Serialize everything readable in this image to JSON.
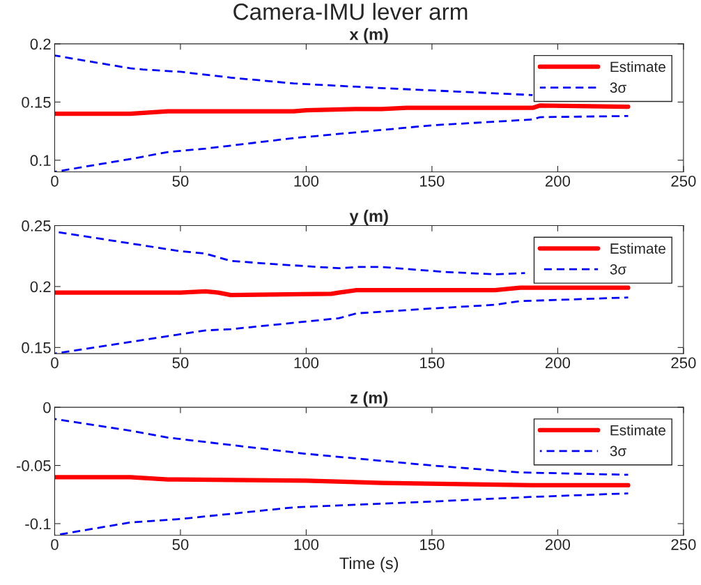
{
  "chart_data": [
    {
      "type": "line",
      "title": "Camera-IMU lever arm",
      "subtitle": "x (m)",
      "xlim": [
        0,
        250
      ],
      "xticks": [
        0,
        50,
        100,
        150,
        200,
        250
      ],
      "ylim": [
        0.09,
        0.2
      ],
      "yticks": [
        0.1,
        0.15,
        0.2
      ],
      "grid": false,
      "legend": "top right",
      "series": [
        {
          "name": "Estimate",
          "color": "#ff0000",
          "line_style": "solid",
          "x": [
            0,
            30,
            45,
            95,
            100,
            120,
            130,
            140,
            170,
            190,
            193,
            228
          ],
          "values": [
            0.14,
            0.14,
            0.142,
            0.142,
            0.143,
            0.144,
            0.144,
            0.145,
            0.145,
            0.145,
            0.147,
            0.146
          ]
        },
        {
          "name": "3σ",
          "color": "#0000ff",
          "line_style": "dashed",
          "x": [
            0,
            30,
            35,
            50,
            70,
            95,
            130,
            150,
            170,
            190
          ],
          "values": [
            0.19,
            0.179,
            0.178,
            0.176,
            0.171,
            0.166,
            0.162,
            0.16,
            0.158,
            0.156
          ]
        },
        {
          "color": "#0000ff",
          "line_style": "dashed",
          "x": [
            0,
            30,
            45,
            60,
            95,
            130,
            150,
            190,
            193,
            228
          ],
          "values": [
            0.09,
            0.101,
            0.107,
            0.11,
            0.119,
            0.126,
            0.13,
            0.135,
            0.137,
            0.138
          ]
        }
      ]
    },
    {
      "type": "line",
      "title": "y (m)",
      "xlim": [
        0,
        250
      ],
      "xticks": [
        0,
        50,
        100,
        150,
        200,
        250
      ],
      "ylim": [
        0.145,
        0.25
      ],
      "yticks": [
        0.15,
        0.2,
        0.25
      ],
      "grid": false,
      "legend": "top right",
      "series": [
        {
          "name": "Estimate",
          "color": "#ff0000",
          "line_style": "solid",
          "x": [
            0,
            50,
            60,
            65,
            70,
            110,
            113,
            120,
            150,
            175,
            185,
            228
          ],
          "values": [
            0.195,
            0.195,
            0.196,
            0.195,
            0.193,
            0.194,
            0.195,
            0.197,
            0.197,
            0.197,
            0.199,
            0.199
          ]
        },
        {
          "name": "3σ",
          "color": "#0000ff",
          "line_style": "dashed",
          "x": [
            0,
            50,
            60,
            70,
            90,
            113,
            120,
            130,
            155,
            175,
            187
          ],
          "values": [
            0.245,
            0.229,
            0.227,
            0.221,
            0.218,
            0.215,
            0.216,
            0.216,
            0.212,
            0.21,
            0.211
          ]
        },
        {
          "color": "#0000ff",
          "line_style": "dashed",
          "x": [
            0,
            60,
            70,
            113,
            120,
            150,
            175,
            185,
            228
          ],
          "values": [
            0.145,
            0.164,
            0.165,
            0.174,
            0.178,
            0.182,
            0.185,
            0.188,
            0.191
          ]
        }
      ]
    },
    {
      "type": "line",
      "title": "z (m)",
      "xlabel": "Time (s)",
      "xlim": [
        0,
        250
      ],
      "xticks": [
        0,
        50,
        100,
        150,
        200,
        250
      ],
      "ylim": [
        -0.11,
        0
      ],
      "yticks": [
        {
          "value": -0.1,
          "label": "-0.1"
        },
        {
          "value": -0.05,
          "label": "-0.05"
        },
        0
      ],
      "grid": false,
      "legend": "top right",
      "series": [
        {
          "name": "Estimate",
          "color": "#ff0000",
          "line_style": "solid",
          "x": [
            0,
            30,
            45,
            100,
            130,
            190,
            228
          ],
          "values": [
            -0.06,
            -0.06,
            -0.062,
            -0.063,
            -0.065,
            -0.067,
            -0.067
          ]
        },
        {
          "name": "3σ",
          "color": "#0000ff",
          "line_style": "dashed",
          "x": [
            0,
            30,
            45,
            100,
            150,
            185,
            228
          ],
          "values": [
            -0.01,
            -0.02,
            -0.026,
            -0.04,
            -0.05,
            -0.056,
            -0.058
          ]
        },
        {
          "color": "#0000ff",
          "line_style": "dashed",
          "x": [
            0,
            30,
            50,
            95,
            150,
            190,
            228
          ],
          "values": [
            -0.11,
            -0.099,
            -0.096,
            -0.086,
            -0.081,
            -0.077,
            -0.074
          ]
        }
      ]
    }
  ]
}
